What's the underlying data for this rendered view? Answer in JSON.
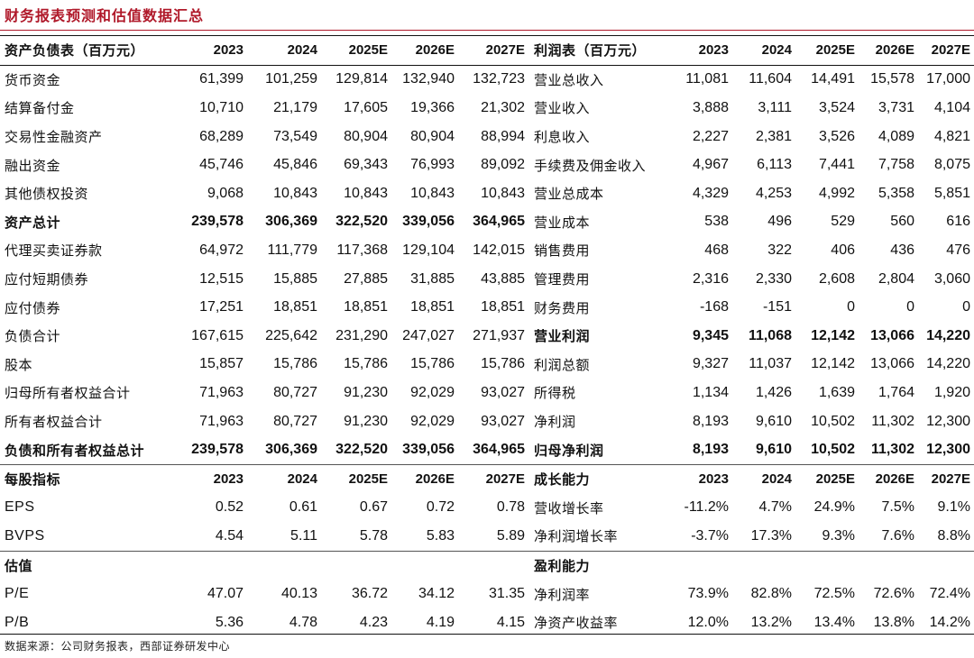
{
  "title": "财务报表预测和估值数据汇总",
  "source": "数据来源：公司财务报表，西部证券研发中心",
  "sections": [
    {
      "rows": [
        {
          "bold": true,
          "hdr": true,
          "cells": [
            "资产负债表（百万元）",
            "2023",
            "2024",
            "2025E",
            "2026E",
            "2027E",
            "利润表（百万元）",
            "2023",
            "2024",
            "2025E",
            "2026E",
            "2027E"
          ]
        },
        {
          "cells": [
            "货币资金",
            "61,399",
            "101,259",
            "129,814",
            "132,940",
            "132,723",
            "营业总收入",
            "11,081",
            "11,604",
            "14,491",
            "15,578",
            "17,000"
          ]
        },
        {
          "cells": [
            "结算备付金",
            "10,710",
            "21,179",
            "17,605",
            "19,366",
            "21,302",
            "营业收入",
            "3,888",
            "3,111",
            "3,524",
            "3,731",
            "4,104"
          ]
        },
        {
          "cells": [
            "交易性金融资产",
            "68,289",
            "73,549",
            "80,904",
            "80,904",
            "88,994",
            "利息收入",
            "2,227",
            "2,381",
            "3,526",
            "4,089",
            "4,821"
          ]
        },
        {
          "cells": [
            "融出资金",
            "45,746",
            "45,846",
            "69,343",
            "76,993",
            "89,092",
            "手续费及佣金收入",
            "4,967",
            "6,113",
            "7,441",
            "7,758",
            "8,075"
          ]
        },
        {
          "cells": [
            "其他债权投资",
            "9,068",
            "10,843",
            "10,843",
            "10,843",
            "10,843",
            "营业总成本",
            "4,329",
            "4,253",
            "4,992",
            "5,358",
            "5,851"
          ]
        },
        {
          "boldLeft": true,
          "cells": [
            "资产总计",
            "239,578",
            "306,369",
            "322,520",
            "339,056",
            "364,965",
            "营业成本",
            "538",
            "496",
            "529",
            "560",
            "616"
          ]
        },
        {
          "cells": [
            "代理买卖证券款",
            "64,972",
            "111,779",
            "117,368",
            "129,104",
            "142,015",
            "销售费用",
            "468",
            "322",
            "406",
            "436",
            "476"
          ]
        },
        {
          "cells": [
            "应付短期债券",
            "12,515",
            "15,885",
            "27,885",
            "31,885",
            "43,885",
            "管理费用",
            "2,316",
            "2,330",
            "2,608",
            "2,804",
            "3,060"
          ]
        },
        {
          "cells": [
            "应付债券",
            "17,251",
            "18,851",
            "18,851",
            "18,851",
            "18,851",
            "财务费用",
            "-168",
            "-151",
            "0",
            "0",
            "0"
          ]
        },
        {
          "boldRight": true,
          "cells": [
            "负债合计",
            "167,615",
            "225,642",
            "231,290",
            "247,027",
            "271,937",
            "营业利润",
            "9,345",
            "11,068",
            "12,142",
            "13,066",
            "14,220"
          ]
        },
        {
          "cells": [
            "股本",
            "15,857",
            "15,786",
            "15,786",
            "15,786",
            "15,786",
            "利润总额",
            "9,327",
            "11,037",
            "12,142",
            "13,066",
            "14,220"
          ]
        },
        {
          "cells": [
            "归母所有者权益合计",
            "71,963",
            "80,727",
            "91,230",
            "92,029",
            "93,027",
            "所得税",
            "1,134",
            "1,426",
            "1,639",
            "1,764",
            "1,920"
          ]
        },
        {
          "cells": [
            "所有者权益合计",
            "71,963",
            "80,727",
            "91,230",
            "92,029",
            "93,027",
            "净利润",
            "8,193",
            "9,610",
            "10,502",
            "11,302",
            "12,300"
          ]
        },
        {
          "bold": true,
          "cells": [
            "负债和所有者权益总计",
            "239,578",
            "306,369",
            "322,520",
            "339,056",
            "364,965",
            "归母净利润",
            "8,193",
            "9,610",
            "10,502",
            "11,302",
            "12,300"
          ]
        }
      ]
    },
    {
      "rows": [
        {
          "bold": true,
          "hdr": true,
          "cells": [
            "每股指标",
            "2023",
            "2024",
            "2025E",
            "2026E",
            "2027E",
            "成长能力",
            "2023",
            "2024",
            "2025E",
            "2026E",
            "2027E"
          ]
        },
        {
          "cells": [
            "EPS",
            "0.52",
            "0.61",
            "0.67",
            "0.72",
            "0.78",
            "营收增长率",
            "-11.2%",
            "4.7%",
            "24.9%",
            "7.5%",
            "9.1%"
          ]
        },
        {
          "cells": [
            "BVPS",
            "4.54",
            "5.11",
            "5.78",
            "5.83",
            "5.89",
            "净利润增长率",
            "-3.7%",
            "17.3%",
            "9.3%",
            "7.6%",
            "8.8%"
          ]
        }
      ]
    },
    {
      "rows": [
        {
          "bold": true,
          "hdr": true,
          "cells": [
            "估值",
            "",
            "",
            "",
            "",
            "",
            "盈利能力",
            "",
            "",
            "",
            "",
            ""
          ]
        },
        {
          "cells": [
            "P/E",
            "47.07",
            "40.13",
            "36.72",
            "34.12",
            "31.35",
            "净利润率",
            "73.9%",
            "82.8%",
            "72.5%",
            "72.6%",
            "72.4%"
          ]
        },
        {
          "cells": [
            "P/B",
            "5.36",
            "4.78",
            "4.23",
            "4.19",
            "4.15",
            "净资产收益率",
            "12.0%",
            "13.2%",
            "13.4%",
            "13.8%",
            "14.2%"
          ]
        }
      ]
    }
  ]
}
